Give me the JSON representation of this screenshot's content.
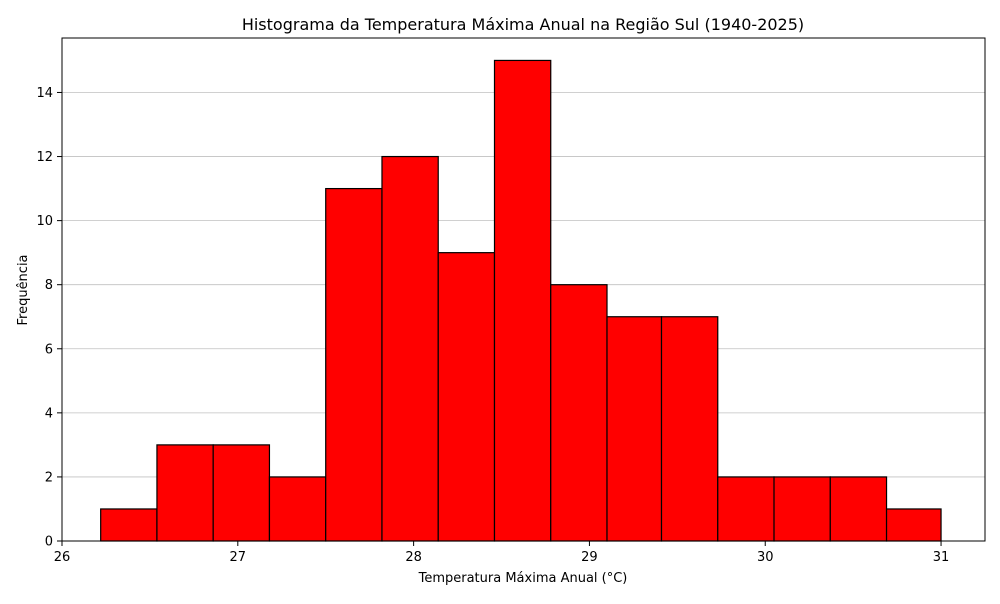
{
  "chart_data": {
    "type": "bar",
    "title": "Histograma da Temperatura Máxima Anual na Região Sul (1940-2025)",
    "xlabel": "Temperatura Máxima Anual (°C)",
    "ylabel": "Frequência",
    "xlim": [
      26.0,
      31.25
    ],
    "ylim": [
      0,
      15.7
    ],
    "bin_edges": [
      26.22,
      26.54,
      26.86,
      27.18,
      27.5,
      27.82,
      28.14,
      28.46,
      28.78,
      29.1,
      29.41,
      29.73,
      30.05,
      30.37,
      30.69,
      31.0
    ],
    "values": [
      1,
      3,
      3,
      2,
      11,
      12,
      9,
      15,
      8,
      7,
      7,
      2,
      2,
      2,
      1
    ],
    "xticks": [
      26,
      27,
      28,
      29,
      30,
      31
    ],
    "yticks": [
      0,
      2,
      4,
      6,
      8,
      10,
      12,
      14
    ],
    "grid": "y",
    "bar_color": "#ff0000",
    "edge_color": "#000000",
    "grid_color": "#c0c0c0"
  }
}
